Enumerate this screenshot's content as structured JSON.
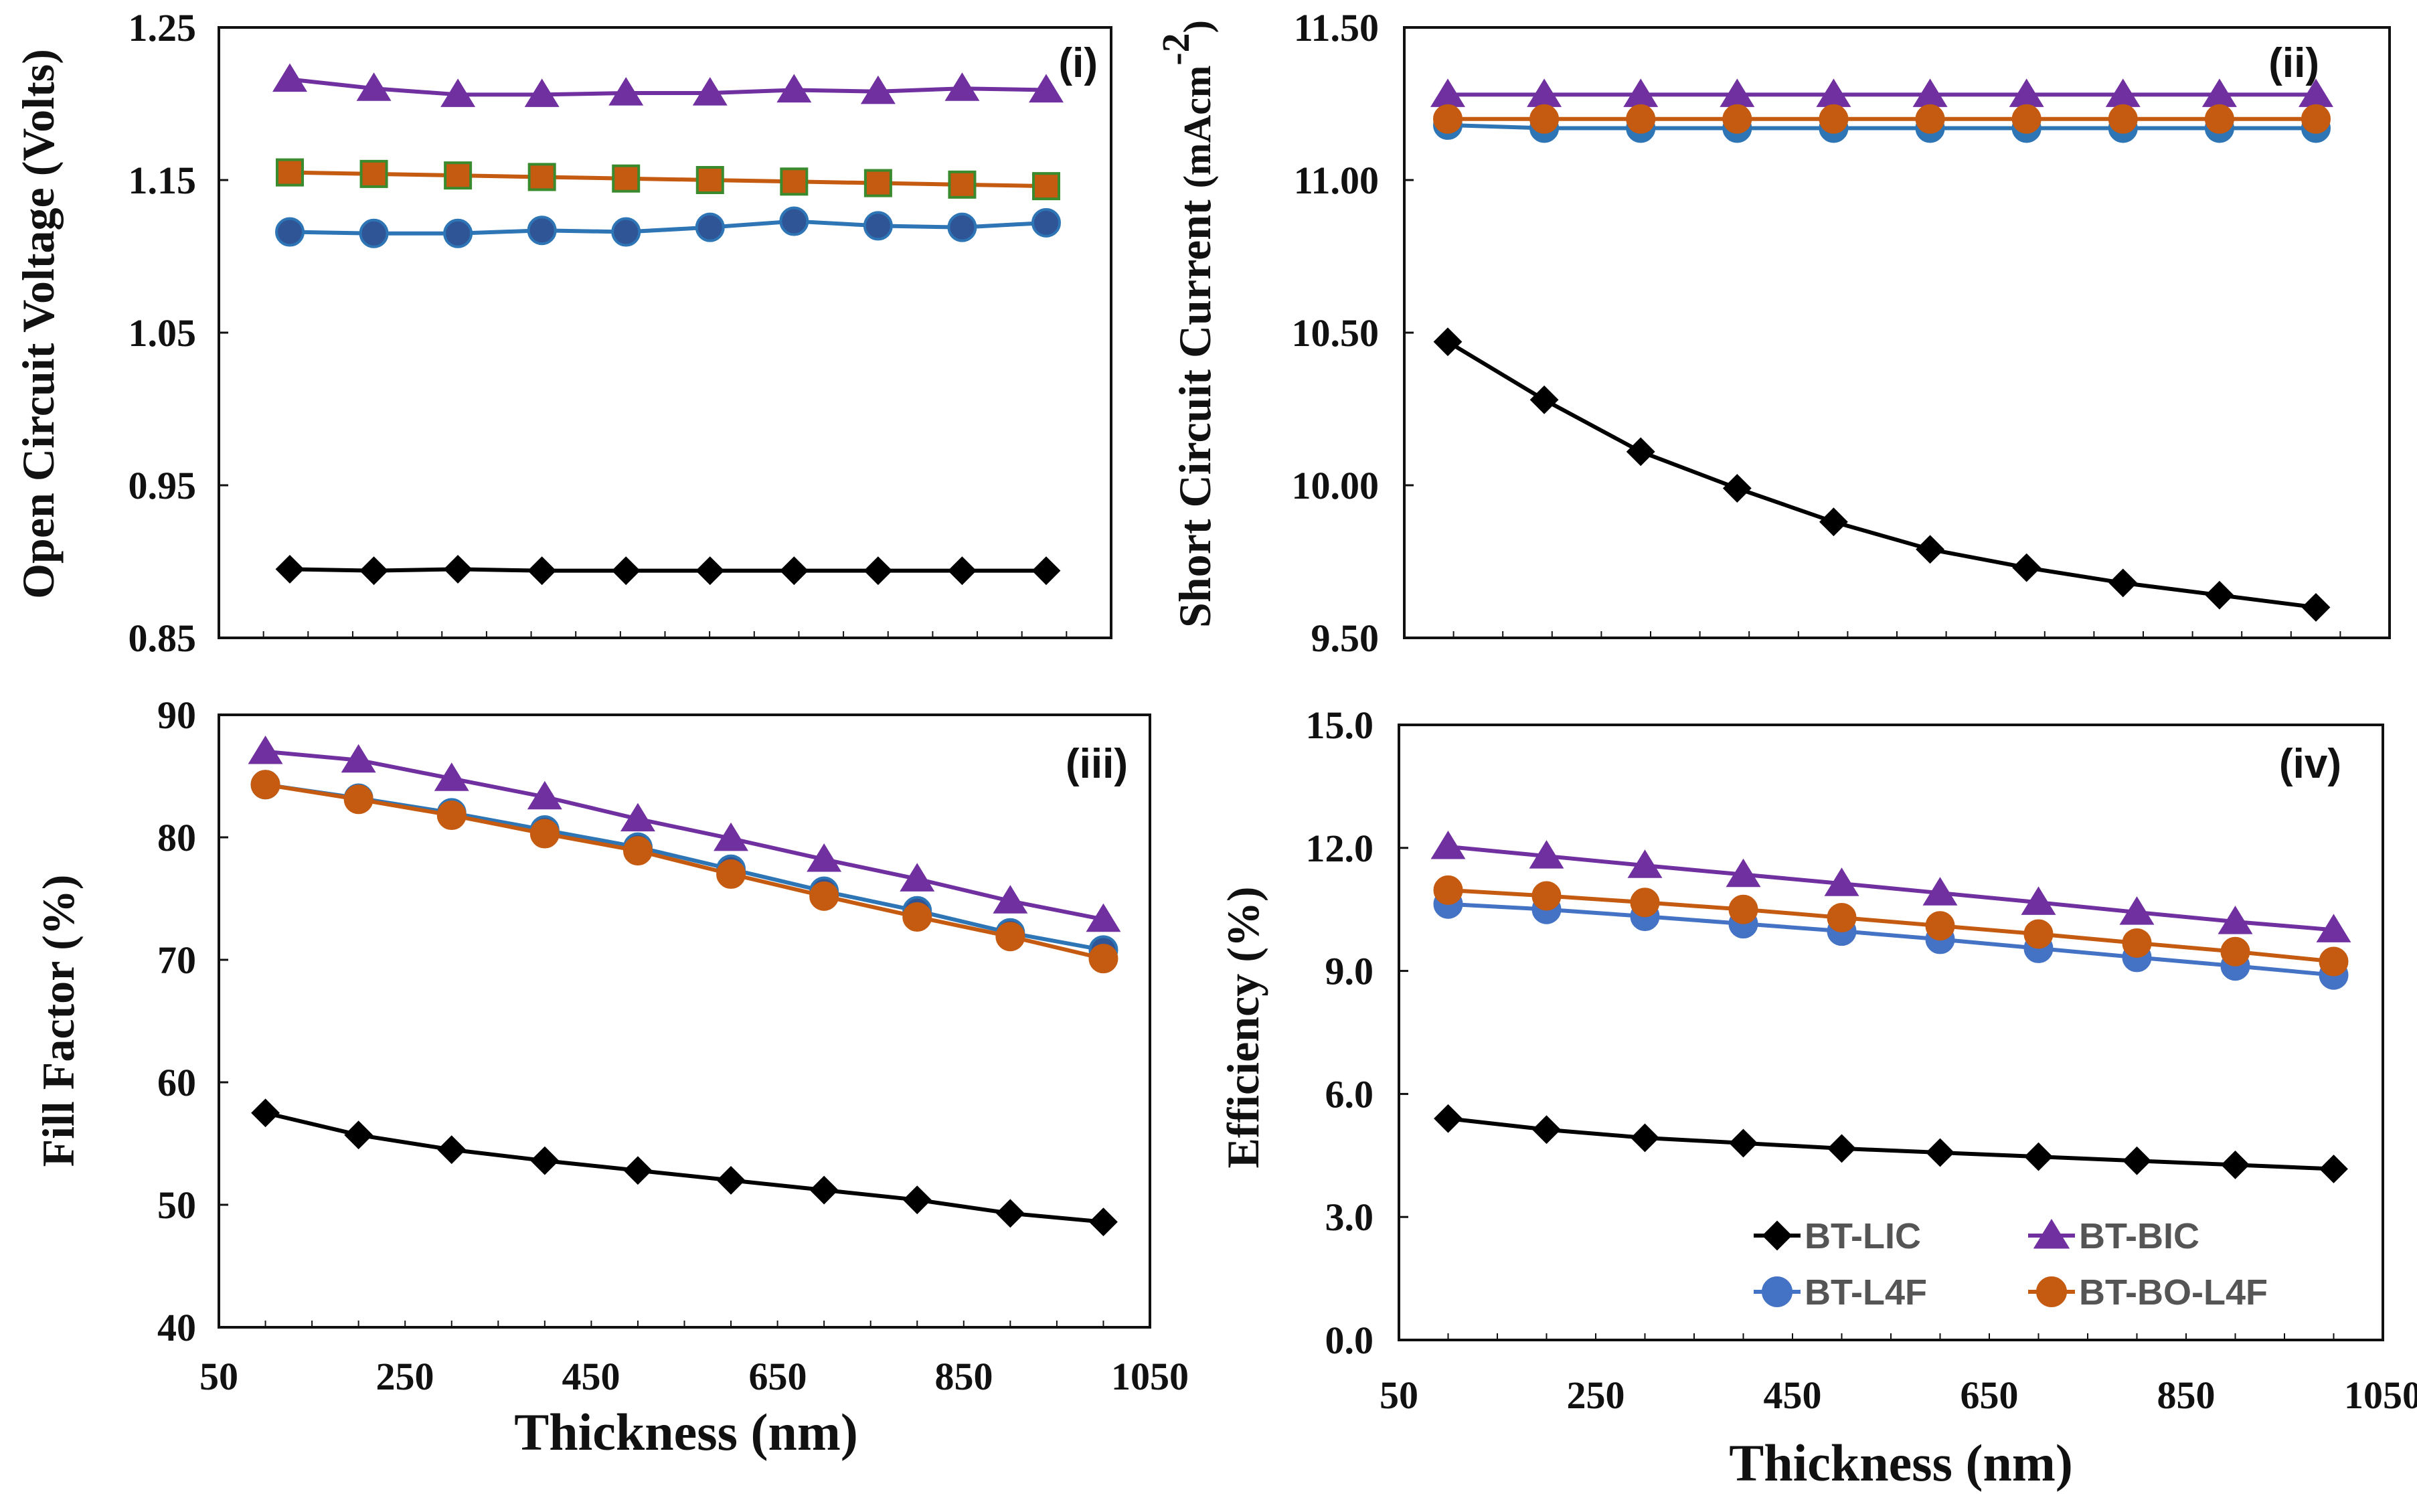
{
  "chart_data": [
    {
      "id": "panel-i",
      "type": "line",
      "panel_label": "(i)",
      "ylabel": "Open Circuit Voltage (Volts)",
      "xlabel": "",
      "ylim": [
        0.85,
        1.25
      ],
      "xlim": [
        0,
        1050
      ],
      "yticks": [
        "1.25",
        "1.15",
        "1.05",
        "0.95",
        "0.85"
      ],
      "xticks": [],
      "x": [
        100,
        200,
        300,
        400,
        500,
        600,
        700,
        800,
        900,
        1000
      ],
      "series": [
        {
          "name": "BT-LIC",
          "color": "#000000",
          "marker": "diamond",
          "markerFill": "#000000",
          "markerStroke": "#000000",
          "values": [
            0.895,
            0.894,
            0.895,
            0.894,
            0.894,
            0.894,
            0.894,
            0.894,
            0.894,
            0.894
          ]
        },
        {
          "name": "BT-BIC",
          "color": "#7030a0",
          "marker": "triangle",
          "markerFill": "#7030a0",
          "markerStroke": "#7030a0",
          "values": [
            1.216,
            1.21,
            1.206,
            1.206,
            1.207,
            1.207,
            1.209,
            1.208,
            1.21,
            1.209
          ]
        },
        {
          "name": "BT-L4F",
          "color": "#2e75b6",
          "marker": "circle",
          "markerFill": "#2f5597",
          "markerStroke": "#2e75b6",
          "values": [
            1.116,
            1.115,
            1.115,
            1.117,
            1.116,
            1.119,
            1.123,
            1.12,
            1.119,
            1.122
          ]
        },
        {
          "name": "BT-BO-L4F",
          "color": "#c55a11",
          "marker": "square",
          "markerFill": "#c55a11",
          "markerStroke": "#3a8a2e",
          "values": [
            1.155,
            1.154,
            1.153,
            1.152,
            1.151,
            1.15,
            1.149,
            1.148,
            1.147,
            1.146
          ]
        }
      ]
    },
    {
      "id": "panel-ii",
      "type": "line",
      "panel_label": "(ii)",
      "ylabel_main": "Short Circuit Current",
      "ylabel_unit": "(mAcm",
      "ylabel_sup": "-2",
      "ylabel_close": ")",
      "xlabel": "",
      "ylim": [
        9.5,
        11.5
      ],
      "xlim": [
        50,
        1050
      ],
      "yticks": [
        "11.50",
        "11.00",
        "10.50",
        "10.00",
        "9.50"
      ],
      "xticks": [],
      "x": [
        100,
        200,
        300,
        400,
        500,
        600,
        700,
        800,
        900,
        1000
      ],
      "series": [
        {
          "name": "BT-LIC",
          "color": "#000000",
          "marker": "diamond",
          "markerFill": "#000000",
          "markerStroke": "#000000",
          "values": [
            10.47,
            10.28,
            10.11,
            9.99,
            9.88,
            9.79,
            9.73,
            9.68,
            9.64,
            9.6
          ]
        },
        {
          "name": "BT-BIC",
          "color": "#7030a0",
          "marker": "triangle",
          "markerFill": "#7030a0",
          "markerStroke": "#7030a0",
          "values": [
            11.28,
            11.28,
            11.28,
            11.28,
            11.28,
            11.28,
            11.28,
            11.28,
            11.28,
            11.28
          ]
        },
        {
          "name": "BT-L4F",
          "color": "#2e75b6",
          "marker": "circle",
          "markerFill": "#2e75b6",
          "markerStroke": "#2e75b6",
          "values": [
            11.18,
            11.17,
            11.17,
            11.17,
            11.17,
            11.17,
            11.17,
            11.17,
            11.17,
            11.17
          ]
        },
        {
          "name": "BT-BO-L4F",
          "color": "#c55a11",
          "marker": "circle",
          "markerFill": "#c55a11",
          "markerStroke": "#c55a11",
          "values": [
            11.2,
            11.2,
            11.2,
            11.2,
            11.2,
            11.2,
            11.2,
            11.2,
            11.2,
            11.2
          ]
        }
      ]
    },
    {
      "id": "panel-iii",
      "type": "line",
      "panel_label": "(iii)",
      "ylabel": "Fill Factor (%)",
      "xlabel": "Thickness (nm)",
      "ylim": [
        40,
        90
      ],
      "xlim": [
        50,
        1050
      ],
      "yticks": [
        "90",
        "80",
        "70",
        "60",
        "50",
        "40"
      ],
      "xticks": [
        "50",
        "250",
        "450",
        "650",
        "850",
        "1050"
      ],
      "x": [
        100,
        200,
        300,
        400,
        500,
        600,
        700,
        800,
        900,
        1000
      ],
      "series": [
        {
          "name": "BT-LIC",
          "color": "#000000",
          "marker": "diamond",
          "markerFill": "#000000",
          "markerStroke": "#000000",
          "values": [
            57.5,
            55.7,
            54.5,
            53.6,
            52.8,
            52.0,
            51.2,
            50.4,
            49.3,
            48.6
          ]
        },
        {
          "name": "BT-BIC",
          "color": "#7030a0",
          "marker": "triangle",
          "markerFill": "#7030a0",
          "markerStroke": "#7030a0",
          "values": [
            87.0,
            86.3,
            84.8,
            83.3,
            81.5,
            79.9,
            78.2,
            76.6,
            74.8,
            73.3
          ]
        },
        {
          "name": "BT-L4F",
          "color": "#2e75b6",
          "marker": "circle",
          "markerFill": "#2f5597",
          "markerStroke": "#2e75b6",
          "values": [
            84.3,
            83.2,
            82.0,
            80.6,
            79.2,
            77.4,
            75.6,
            74.0,
            72.2,
            70.8
          ]
        },
        {
          "name": "BT-BO-L4F",
          "color": "#c55a11",
          "marker": "circle",
          "markerFill": "#c55a11",
          "markerStroke": "#c55a11",
          "values": [
            84.3,
            83.1,
            81.8,
            80.3,
            78.9,
            77.0,
            75.2,
            73.5,
            71.9,
            70.1
          ]
        }
      ]
    },
    {
      "id": "panel-iv",
      "type": "line",
      "panel_label": "(iv)",
      "ylabel": "Efficiency (%)",
      "xlabel": "Thickness (nm)",
      "ylim": [
        0,
        15
      ],
      "xlim": [
        50,
        1050
      ],
      "yticks": [
        "15.0",
        "12.0",
        "9.0",
        "6.0",
        "3.0",
        "0.0"
      ],
      "xticks": [
        "50",
        "250",
        "450",
        "650",
        "850",
        "1050"
      ],
      "x": [
        100,
        200,
        300,
        400,
        500,
        600,
        700,
        800,
        900,
        1000
      ],
      "series": [
        {
          "name": "BT-LIC",
          "color": "#000000",
          "marker": "diamond",
          "markerFill": "#000000",
          "markerStroke": "#000000",
          "values": [
            5.4,
            5.13,
            4.93,
            4.8,
            4.67,
            4.57,
            4.47,
            4.37,
            4.27,
            4.17
          ]
        },
        {
          "name": "BT-BIC",
          "color": "#7030a0",
          "marker": "triangle",
          "markerFill": "#7030a0",
          "markerStroke": "#7030a0",
          "values": [
            12.03,
            11.8,
            11.57,
            11.35,
            11.13,
            10.9,
            10.67,
            10.43,
            10.2,
            10.0
          ]
        },
        {
          "name": "BT-L4F",
          "color": "#4472c4",
          "marker": "circle",
          "markerFill": "#4472c4",
          "markerStroke": "#4472c4",
          "values": [
            10.63,
            10.5,
            10.33,
            10.15,
            9.97,
            9.77,
            9.55,
            9.33,
            9.12,
            8.9
          ]
        },
        {
          "name": "BT-BO-L4F",
          "color": "#c55a11",
          "marker": "circle",
          "markerFill": "#c55a11",
          "markerStroke": "#c55a11",
          "values": [
            10.97,
            10.83,
            10.67,
            10.5,
            10.3,
            10.1,
            9.9,
            9.68,
            9.47,
            9.23
          ]
        }
      ],
      "legend": {
        "placement": "bottom-right",
        "entries": [
          {
            "name": "BT-LIC",
            "color": "#000000",
            "marker": "diamond"
          },
          {
            "name": "BT-BIC",
            "color": "#7030a0",
            "marker": "triangle"
          },
          {
            "name": "BT-L4F",
            "color": "#4472c4",
            "marker": "circle"
          },
          {
            "name": "BT-BO-L4F",
            "color": "#c55a11",
            "marker": "circle"
          }
        ]
      }
    }
  ]
}
